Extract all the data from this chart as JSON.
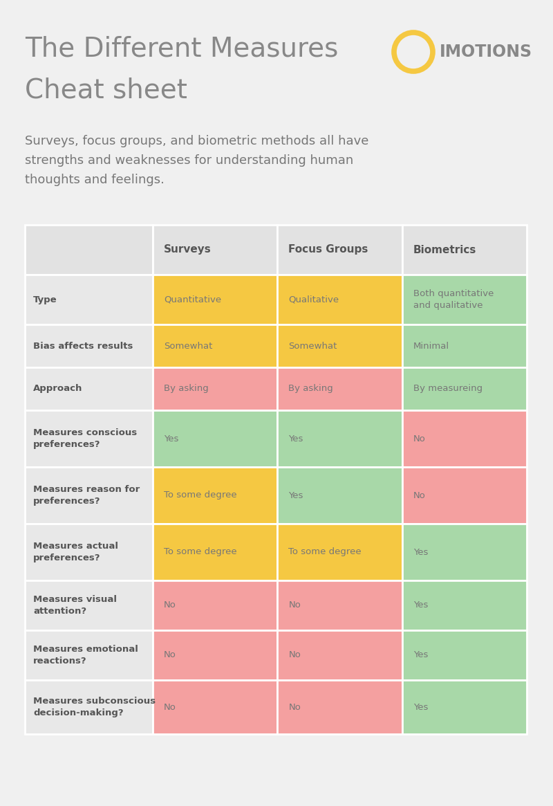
{
  "title_line1": "The Different Measures",
  "title_line2": "Cheat sheet",
  "subtitle": "Surveys, focus groups, and biometric methods all have\nstrengths and weaknesses for understanding human\nthoughts and feelings.",
  "logo_text": "IMOTIONS",
  "bg_color": "#f0f0f0",
  "header_bg": "#e2e2e2",
  "row_label_bg": "#e8e8e8",
  "col_headers": [
    "Surveys",
    "Focus Groups",
    "Biometrics"
  ],
  "row_labels": [
    "Type",
    "Bias affects results",
    "Approach",
    "Measures conscious\npreferences?",
    "Measures reason for\npreferences?",
    "Measures actual\npreferences?",
    "Measures visual\nattention?",
    "Measures emotional\nreactions?",
    "Measures subconscious\ndecision-making?"
  ],
  "cell_values": [
    [
      "Quantitative",
      "Qualitative",
      "Both quantitative\nand qualitative"
    ],
    [
      "Somewhat",
      "Somewhat",
      "Minimal"
    ],
    [
      "By asking",
      "By asking",
      "By measureing"
    ],
    [
      "Yes",
      "Yes",
      "No"
    ],
    [
      "To some degree",
      "Yes",
      "No"
    ],
    [
      "To some degree",
      "To some degree",
      "Yes"
    ],
    [
      "No",
      "No",
      "Yes"
    ],
    [
      "No",
      "No",
      "Yes"
    ],
    [
      "No",
      "No",
      "Yes"
    ]
  ],
  "cell_colors": [
    [
      "#f5c842",
      "#f5c842",
      "#a8d8a8"
    ],
    [
      "#f5c842",
      "#f5c842",
      "#a8d8a8"
    ],
    [
      "#f4a0a0",
      "#f4a0a0",
      "#a8d8a8"
    ],
    [
      "#a8d8a8",
      "#a8d8a8",
      "#f4a0a0"
    ],
    [
      "#f5c842",
      "#a8d8a8",
      "#f4a0a0"
    ],
    [
      "#f5c842",
      "#f5c842",
      "#a8d8a8"
    ],
    [
      "#f4a0a0",
      "#f4a0a0",
      "#a8d8a8"
    ],
    [
      "#f4a0a0",
      "#f4a0a0",
      "#a8d8a8"
    ],
    [
      "#f4a0a0",
      "#f4a0a0",
      "#a8d8a8"
    ]
  ],
  "title_color": "#888888",
  "text_color": "#777777",
  "bold_color": "#555555",
  "cell_text_color": "#777777",
  "logo_circle_color": "#f5c842",
  "logo_text_color": "#888888"
}
